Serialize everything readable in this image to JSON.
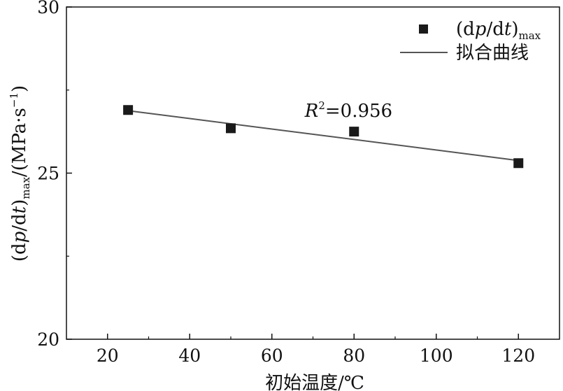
{
  "chart_data": {
    "type": "scatter",
    "title": "",
    "xlabel": "初始温度/℃",
    "ylabel": {
      "prefix": "(d",
      "p": "p",
      "mid": "/d",
      "t": "t",
      "close": ")",
      "sub": "max",
      "unit_open": "/(MPa·s",
      "unit_exp": "−1",
      "unit_close": ")"
    },
    "xlim": [
      10,
      130
    ],
    "ylim": [
      20,
      30
    ],
    "xticks": [
      20,
      40,
      60,
      80,
      100,
      120
    ],
    "yticks": [
      20,
      25,
      30
    ],
    "xtick_labels": [
      "20",
      "40",
      "60",
      "80",
      "100",
      "120"
    ],
    "ytick_labels": [
      "20",
      "25",
      "30"
    ],
    "series": [
      {
        "name": "(dp/dt)max",
        "marker": "square",
        "color": "#1a1a1a",
        "x": [
          25,
          50,
          80,
          120
        ],
        "y": [
          26.9,
          26.35,
          26.25,
          25.3
        ]
      },
      {
        "name": "拟合曲线",
        "marker": "line",
        "color": "#555555",
        "x": [
          25,
          120
        ],
        "y": [
          26.88,
          25.38
        ]
      }
    ],
    "legend": {
      "placement": "top-right",
      "scatter_label": {
        "open": "(d",
        "p": "p",
        "mid": "/d",
        "t": "t",
        "close": ")",
        "sub": "max"
      },
      "line_label": "拟合曲线"
    },
    "annotation": {
      "R": "R",
      "sup": "2",
      "rest": "=0.956",
      "x": 68,
      "y": 26.7
    },
    "grid": false
  }
}
